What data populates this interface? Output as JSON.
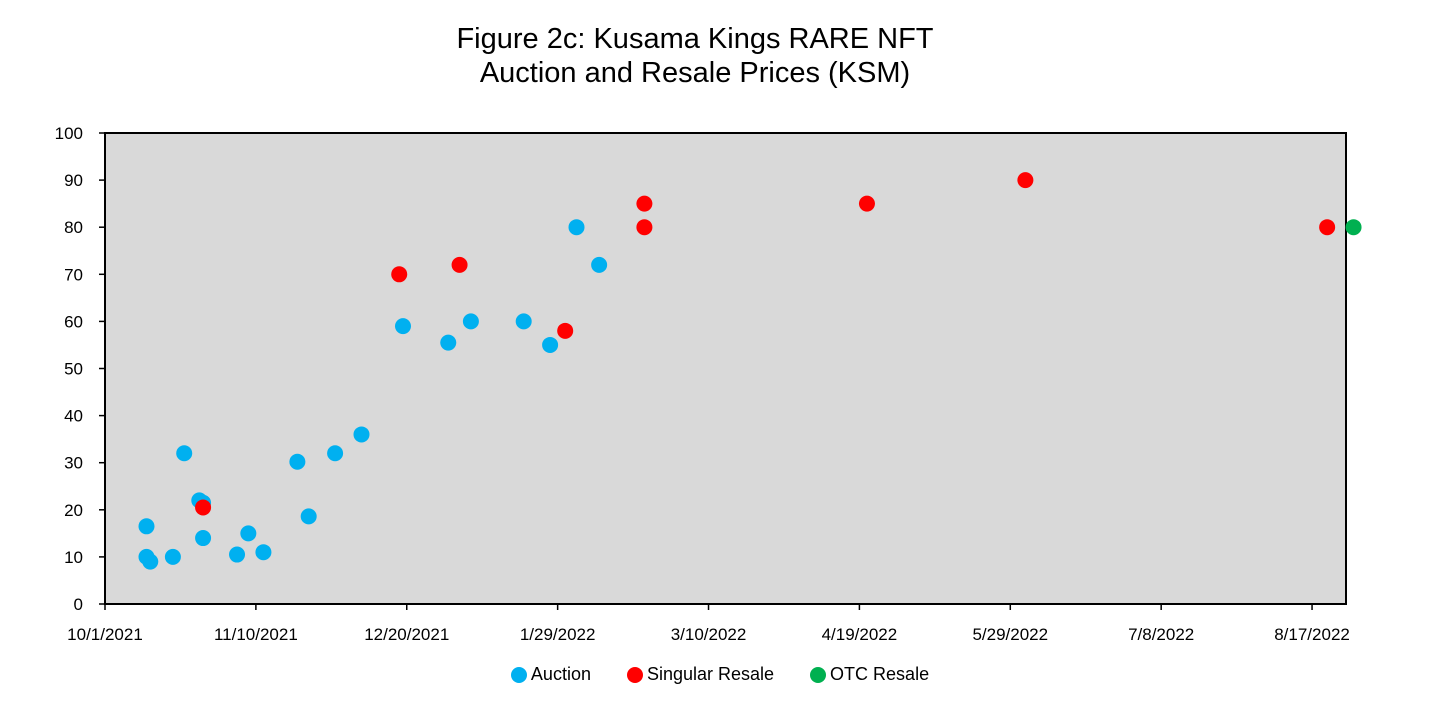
{
  "chart_data": {
    "type": "scatter",
    "title_line1": "Figure 2c: Kusama Kings RARE NFT",
    "title_line2": "Auction and Resale Prices (KSM)",
    "xlabel": "",
    "ylabel": "",
    "x_axis": {
      "type": "date",
      "range": [
        "10/1/2021",
        "8/26/2022"
      ],
      "ticks": [
        "10/1/2021",
        "11/10/2021",
        "12/20/2021",
        "1/29/2022",
        "3/10/2022",
        "4/19/2022",
        "5/29/2022",
        "7/8/2022",
        "8/17/2022"
      ]
    },
    "y_axis": {
      "range": [
        0,
        100
      ],
      "ticks": [
        0,
        10,
        20,
        30,
        40,
        50,
        60,
        70,
        80,
        90,
        100
      ]
    },
    "grid": false,
    "legend_position": "bottom",
    "plot_background": "#d9d9d9",
    "series": [
      {
        "name": "Auction",
        "color": "#00b0f0",
        "points": [
          {
            "x": "10/12/2021",
            "y": 16.5
          },
          {
            "x": "10/12/2021",
            "y": 10
          },
          {
            "x": "10/13/2021",
            "y": 9
          },
          {
            "x": "10/19/2021",
            "y": 10
          },
          {
            "x": "10/22/2021",
            "y": 32
          },
          {
            "x": "10/26/2021",
            "y": 22
          },
          {
            "x": "10/27/2021",
            "y": 21.5
          },
          {
            "x": "10/27/2021",
            "y": 14
          },
          {
            "x": "11/5/2021",
            "y": 10.5
          },
          {
            "x": "11/8/2021",
            "y": 15
          },
          {
            "x": "11/12/2021",
            "y": 11
          },
          {
            "x": "11/21/2021",
            "y": 30.2
          },
          {
            "x": "11/24/2021",
            "y": 18.6
          },
          {
            "x": "12/1/2021",
            "y": 32
          },
          {
            "x": "12/8/2021",
            "y": 36
          },
          {
            "x": "12/19/2021",
            "y": 59
          },
          {
            "x": "12/31/2021",
            "y": 55.5
          },
          {
            "x": "1/6/2022",
            "y": 60
          },
          {
            "x": "1/20/2022",
            "y": 60
          },
          {
            "x": "1/27/2022",
            "y": 55
          },
          {
            "x": "2/3/2022",
            "y": 80
          },
          {
            "x": "2/9/2022",
            "y": 72
          }
        ]
      },
      {
        "name": "Singular Resale",
        "color": "#ff0000",
        "points": [
          {
            "x": "10/27/2021",
            "y": 20.5
          },
          {
            "x": "12/18/2021",
            "y": 70
          },
          {
            "x": "1/3/2022",
            "y": 72
          },
          {
            "x": "1/31/2022",
            "y": 58
          },
          {
            "x": "2/21/2022",
            "y": 85
          },
          {
            "x": "2/21/2022",
            "y": 80
          },
          {
            "x": "4/21/2022",
            "y": 85
          },
          {
            "x": "6/2/2022",
            "y": 90
          },
          {
            "x": "8/21/2022",
            "y": 80
          }
        ]
      },
      {
        "name": "OTC Resale",
        "color": "#00b050",
        "points": [
          {
            "x": "8/28/2022",
            "y": 80
          }
        ]
      }
    ]
  }
}
